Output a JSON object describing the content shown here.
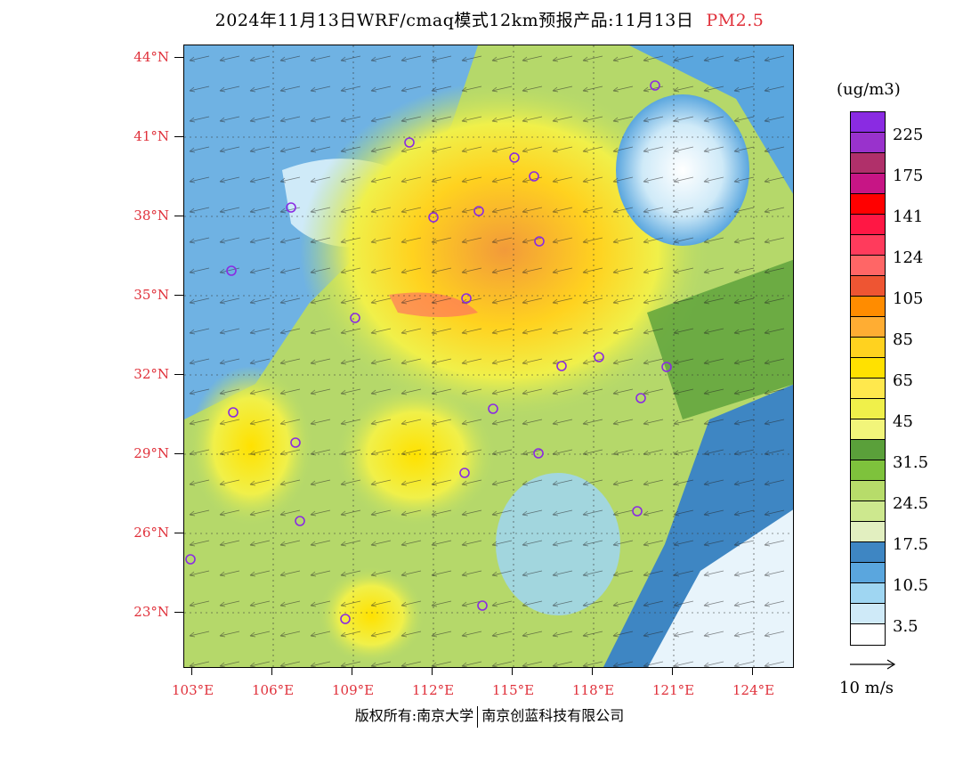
{
  "title": {
    "main": "2024年11月13日WRF/cmaq模式12km预报产品:11月13日",
    "variable": "PM2.5"
  },
  "axes": {
    "lat_labels": [
      "44°N",
      "41°N",
      "38°N",
      "35°N",
      "32°N",
      "29°N",
      "26°N",
      "23°N"
    ],
    "lon_labels": [
      "103°E",
      "106°E",
      "109°E",
      "112°E",
      "115°E",
      "118°E",
      "121°E",
      "124°E"
    ]
  },
  "colorbar": {
    "unit": "(ug/m3)",
    "tick_labels": [
      "225",
      "175",
      "141",
      "124",
      "105",
      "85",
      "65",
      "45",
      "31.5",
      "24.5",
      "17.5",
      "10.5",
      "3.5"
    ],
    "colors": [
      "#8a2be2",
      "#9932cc",
      "#b0306a",
      "#c71585",
      "#ff0000",
      "#ff1744",
      "#ff3b5c",
      "#ff6666",
      "#ee5533",
      "#ff8c00",
      "#ffad33",
      "#ffd21f",
      "#ffe100",
      "#ffe84d",
      "#f0f04a",
      "#f2f57a",
      "#5aa03a",
      "#7ec23c",
      "#b7dc6a",
      "#cde88e",
      "#e2efc0",
      "#3e86c3",
      "#5aa6de",
      "#9fd6f2",
      "#cfeaf8",
      "#ffffff"
    ]
  },
  "wind_reference": {
    "label": "10 m/s"
  },
  "footer": {
    "left": "版权所有:南京大学",
    "right": "南京创蓝科技有限公司"
  },
  "map": {
    "background_colors": {
      "low": "#6fb2e3",
      "mid": "#b5d86a",
      "high": "#ffe04a",
      "peak": "#f5a43a",
      "sea": "#e8f4fb"
    }
  }
}
